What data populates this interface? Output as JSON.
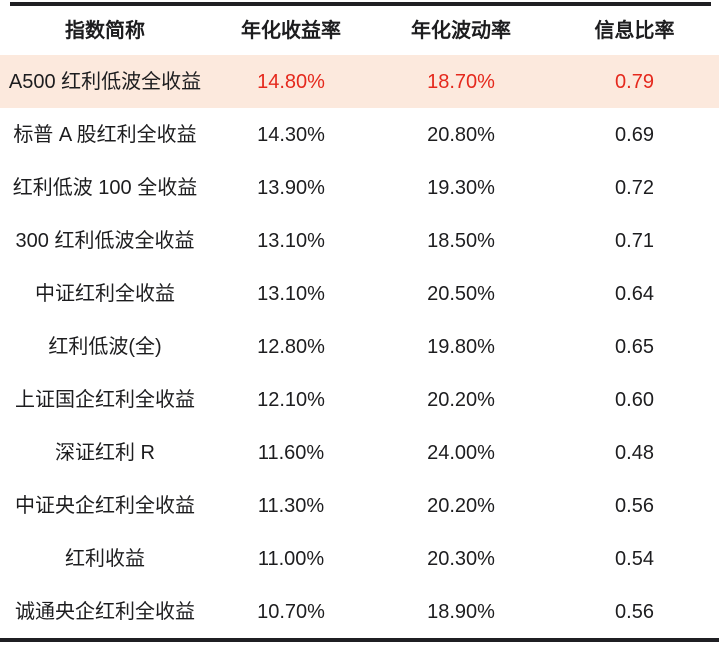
{
  "chart_data": {
    "type": "table",
    "columns": [
      "指数简称",
      "年化收益率",
      "年化波动率",
      "信息比率"
    ],
    "rows": [
      [
        "A500 红利低波全收益",
        "14.80%",
        "18.70%",
        "0.79"
      ],
      [
        "标普 A 股红利全收益",
        "14.30%",
        "20.80%",
        "0.69"
      ],
      [
        "红利低波 100 全收益",
        "13.90%",
        "19.30%",
        "0.72"
      ],
      [
        "300 红利低波全收益",
        "13.10%",
        "18.50%",
        "0.71"
      ],
      [
        "中证红利全收益",
        "13.10%",
        "20.50%",
        "0.64"
      ],
      [
        "红利低波(全)",
        "12.80%",
        "19.80%",
        "0.65"
      ],
      [
        "上证国企红利全收益",
        "12.10%",
        "20.20%",
        "0.60"
      ],
      [
        "深证红利 R",
        "11.60%",
        "24.00%",
        "0.48"
      ],
      [
        "中证央企红利全收益",
        "11.30%",
        "20.20%",
        "0.56"
      ],
      [
        "红利收益",
        "11.00%",
        "20.30%",
        "0.54"
      ],
      [
        "诚通央企红利全收益",
        "10.70%",
        "18.90%",
        "0.56"
      ]
    ],
    "highlighted_row_index": 0,
    "layout_hints": {
      "style": "three-line-table",
      "value_alignment": "center",
      "highlight_applies_to": "value cells shown in red, row background peach"
    }
  },
  "colors": {
    "text": "#1d1d1f",
    "rule": "#1f1f23",
    "highlight_bg": "#fce9dd",
    "highlight_text": "#e5291d",
    "background": "#ffffff"
  }
}
